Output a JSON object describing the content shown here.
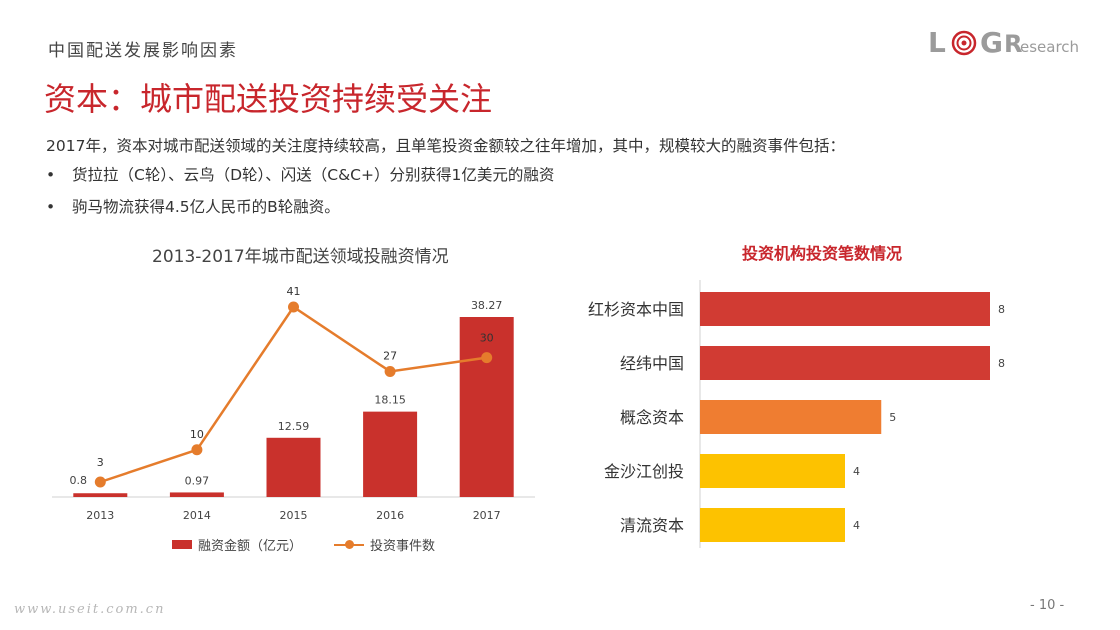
{
  "header": {
    "section_label": "中国配送发展影响因素",
    "title": "资本：城市配送投资持续受关注",
    "logo_text": "LOGResearch"
  },
  "body": {
    "intro": "2017年，资本对城市配送领域的关注度持续较高，且单笔投资金额较之往年增加，其中，规模较大的融资事件包括：",
    "bullets": [
      "货拉拉（C轮）、云鸟（D轮）、闪送（C&C+）分别获得1亿美元的融资",
      "驹马物流获得4.5亿人民币的B轮融资。"
    ],
    "bullet_glyph": "•"
  },
  "footer": {
    "url": "www.useit.com.cn",
    "page_number": "- 10 -"
  },
  "colors": {
    "accent": "#c8262c",
    "bar_red": "#c9312c",
    "line_orange": "#e57c2c",
    "bar_orange": "#ef7d31",
    "bar_yellow": "#fdc200"
  },
  "chart_data": [
    {
      "type": "bar",
      "title": "2013-2017年城市配送领域投融资情况",
      "categories": [
        "2013",
        "2014",
        "2015",
        "2016",
        "2017"
      ],
      "series": [
        {
          "name": "融资金额（亿元）",
          "type": "bar",
          "values": [
            0.8,
            0.97,
            12.59,
            18.15,
            38.27
          ],
          "labels": [
            "0.8",
            "0.97",
            "12.59",
            "18.15",
            "38.27"
          ]
        },
        {
          "name": "投资事件数",
          "type": "line",
          "values": [
            3,
            10,
            41,
            27,
            30
          ],
          "labels": [
            "3",
            "10",
            "41",
            "27",
            "30"
          ]
        }
      ],
      "xlabel": "",
      "ylabel": "",
      "legend": "bottom"
    },
    {
      "type": "bar",
      "orientation": "horizontal",
      "title": "投资机构投资笔数情况",
      "categories": [
        "红杉资本中国",
        "经纬中国",
        "概念资本",
        "金沙江创投",
        "清流资本"
      ],
      "values": [
        8,
        8,
        5,
        4,
        4
      ],
      "labels": [
        "8",
        "8",
        "5",
        "4",
        "4"
      ],
      "colors": [
        "#d13b33",
        "#d13b33",
        "#ef7d31",
        "#fdc200",
        "#fdc200"
      ]
    }
  ]
}
